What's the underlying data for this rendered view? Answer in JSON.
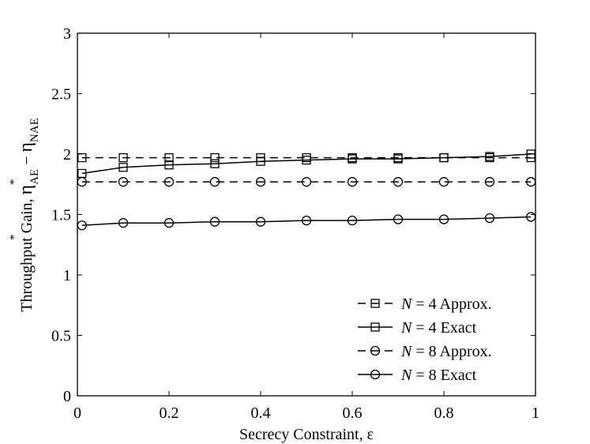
{
  "chart_data": {
    "type": "line",
    "xlabel": "Secrecy Constraint,  ε",
    "ylabel_main": "Throughput Gain,  ",
    "ylabel_eta": "η",
    "ylabel_sub1": "AE",
    "ylabel_minus": " − ",
    "ylabel_sub2": "NAE",
    "ylabel_star": "*",
    "xlim": [
      0,
      1
    ],
    "ylim": [
      0,
      3
    ],
    "xticks": [
      0,
      0.2,
      0.4,
      0.6,
      0.8,
      1
    ],
    "xtick_labels": [
      "0",
      "0.2",
      "0.4",
      "0.6",
      "0.8",
      "1"
    ],
    "yticks": [
      0,
      0.5,
      1,
      1.5,
      2,
      2.5,
      3
    ],
    "ytick_labels": [
      "0",
      "0.5",
      "1",
      "1.5",
      "2",
      "2.5",
      "3"
    ],
    "grid": false,
    "legend_position": "bottom-right",
    "series": [
      {
        "name": "N = 4 Approx.",
        "legend_var": "N",
        "legend_rest": " = 4 Approx.",
        "marker": "square",
        "dash": "dashed",
        "x": [
          0.01,
          0.1,
          0.2,
          0.3,
          0.4,
          0.5,
          0.6,
          0.7,
          0.8,
          0.9,
          0.99
        ],
        "y": [
          1.97,
          1.97,
          1.97,
          1.97,
          1.97,
          1.97,
          1.97,
          1.97,
          1.97,
          1.97,
          1.97
        ]
      },
      {
        "name": "N = 4 Exact",
        "legend_var": "N",
        "legend_rest": " = 4 Exact",
        "marker": "square",
        "dash": "solid",
        "x": [
          0.01,
          0.1,
          0.2,
          0.3,
          0.4,
          0.5,
          0.6,
          0.7,
          0.8,
          0.9,
          0.99
        ],
        "y": [
          1.84,
          1.89,
          1.91,
          1.92,
          1.94,
          1.95,
          1.96,
          1.96,
          1.97,
          1.98,
          2.0
        ]
      },
      {
        "name": "N = 8 Approx.",
        "legend_var": "N",
        "legend_rest": " = 8 Approx.",
        "marker": "circle",
        "dash": "dashed",
        "x": [
          0.01,
          0.1,
          0.2,
          0.3,
          0.4,
          0.5,
          0.6,
          0.7,
          0.8,
          0.9,
          0.99
        ],
        "y": [
          1.77,
          1.77,
          1.77,
          1.77,
          1.77,
          1.77,
          1.77,
          1.77,
          1.77,
          1.77,
          1.77
        ]
      },
      {
        "name": "N = 8 Exact",
        "legend_var": "N",
        "legend_rest": " = 8 Exact",
        "marker": "circle",
        "dash": "solid",
        "x": [
          0.01,
          0.1,
          0.2,
          0.3,
          0.4,
          0.5,
          0.6,
          0.7,
          0.8,
          0.9,
          0.99
        ],
        "y": [
          1.41,
          1.43,
          1.43,
          1.44,
          1.44,
          1.45,
          1.45,
          1.46,
          1.46,
          1.47,
          1.48
        ]
      }
    ]
  }
}
